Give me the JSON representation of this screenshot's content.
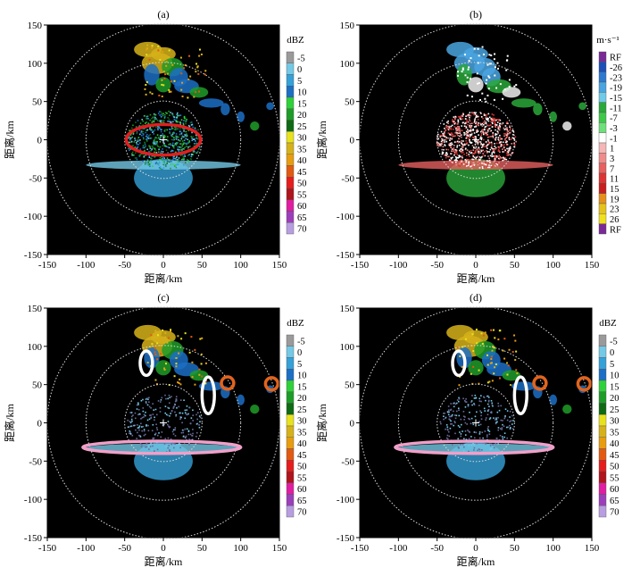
{
  "chart_data": [
    {
      "type": "heatmap",
      "panel_label": "(a)",
      "xlabel": "距离/km",
      "ylabel": "距离/km",
      "xlim": [
        -150,
        150
      ],
      "ylim": [
        -150,
        150
      ],
      "xticks": [
        -150,
        -100,
        -50,
        0,
        50,
        100,
        150
      ],
      "yticks": [
        -150,
        -100,
        -50,
        0,
        50,
        100,
        150
      ],
      "range_rings_km": [
        50,
        100,
        150
      ],
      "legend": {
        "unit": "dBZ",
        "placement": "right",
        "labels": [
          "-5",
          "0",
          "5",
          "10",
          "15",
          "20",
          "25",
          "30",
          "35",
          "40",
          "45",
          "50",
          "55",
          "60",
          "65",
          "70"
        ],
        "colors": [
          "#9a9a9a",
          "#74c9e6",
          "#35a1d8",
          "#1c6fc4",
          "#2fd13a",
          "#1e9c28",
          "#0f6a14",
          "#e8e21e",
          "#d6b21a",
          "#e89d10",
          "#e25a12",
          "#e61d1d",
          "#b0141c",
          "#e01ea2",
          "#9c3eba",
          "#b89ee0"
        ]
      },
      "annotations": [
        {
          "shape": "ellipse",
          "color": "#e02020",
          "center": [
            0,
            0
          ],
          "radii": [
            48,
            20
          ]
        }
      ]
    },
    {
      "type": "heatmap",
      "panel_label": "(b)",
      "xlabel": "距离/km",
      "ylabel": "距离/km",
      "xlim": [
        -150,
        150
      ],
      "ylim": [
        -150,
        150
      ],
      "xticks": [
        -150,
        -100,
        -50,
        0,
        50,
        100,
        150
      ],
      "yticks": [
        -150,
        -100,
        -50,
        0,
        50,
        100,
        150
      ],
      "range_rings_km": [
        50,
        100,
        150
      ],
      "legend": {
        "unit": "m·s⁻¹",
        "placement": "right",
        "labels": [
          "RF",
          "-26",
          "-23",
          "-19",
          "-15",
          "-11",
          "-7",
          "-3",
          "-1",
          "1",
          "3",
          "7",
          "11",
          "15",
          "19",
          "23",
          "26",
          "RF"
        ],
        "colors": [
          "#7a2a96",
          "#1c4fb8",
          "#2c79d0",
          "#4aa4e0",
          "#6fcbe8",
          "#2aa83a",
          "#3ec84a",
          "#6ee07a",
          "#ffffff",
          "#f4b6b6",
          "#ee8c8c",
          "#e66060",
          "#dc3434",
          "#c81e1e",
          "#e4901c",
          "#e6c21c",
          "#f0e020",
          "#7a2a96"
        ]
      },
      "annotations": []
    },
    {
      "type": "heatmap",
      "panel_label": "(c)",
      "xlabel": "距离/km",
      "ylabel": "距离/km",
      "xlim": [
        -150,
        150
      ],
      "ylim": [
        -150,
        150
      ],
      "xticks": [
        -150,
        -100,
        -50,
        0,
        50,
        100,
        150
      ],
      "yticks": [
        -150,
        -100,
        -50,
        0,
        50,
        100,
        150
      ],
      "range_rings_km": [
        50,
        100,
        150
      ],
      "legend": {
        "unit": "dBZ",
        "placement": "right",
        "labels": [
          "-5",
          "0",
          "5",
          "10",
          "15",
          "20",
          "25",
          "30",
          "35",
          "40",
          "45",
          "50",
          "55",
          "60",
          "65",
          "70"
        ],
        "colors": [
          "#9a9a9a",
          "#74c9e6",
          "#35a1d8",
          "#1c6fc4",
          "#2fd13a",
          "#1e9c28",
          "#0f6a14",
          "#e8e21e",
          "#d6b21a",
          "#e89d10",
          "#e25a12",
          "#e61d1d",
          "#b0141c",
          "#e01ea2",
          "#9c3eba",
          "#b89ee0"
        ]
      },
      "annotations": [
        {
          "shape": "ellipse",
          "color": "#f0a0c8",
          "center": [
            -2,
            -32
          ],
          "radii": [
            102,
            8
          ]
        },
        {
          "shape": "ellipse",
          "color": "#ffffff",
          "center": [
            -22,
            78
          ],
          "radii": [
            8,
            16
          ]
        },
        {
          "shape": "ellipse",
          "color": "#ffffff",
          "center": [
            58,
            36
          ],
          "radii": [
            8,
            24
          ]
        },
        {
          "shape": "circle",
          "color": "#e0641e",
          "center": [
            83,
            52
          ],
          "radius": 8
        },
        {
          "shape": "circle",
          "color": "#e0641e",
          "center": [
            140,
            51
          ],
          "radius": 8
        }
      ]
    },
    {
      "type": "heatmap",
      "panel_label": "(d)",
      "xlabel": "距离/km",
      "ylabel": "距离/km",
      "xlim": [
        -150,
        150
      ],
      "ylim": [
        -150,
        150
      ],
      "xticks": [
        -150,
        -100,
        -50,
        0,
        50,
        100,
        150
      ],
      "yticks": [
        -150,
        -100,
        -50,
        0,
        50,
        100,
        150
      ],
      "range_rings_km": [
        50,
        100,
        150
      ],
      "legend": {
        "unit": "dBZ",
        "placement": "right",
        "labels": [
          "-5",
          "0",
          "5",
          "10",
          "15",
          "20",
          "25",
          "30",
          "35",
          "40",
          "45",
          "50",
          "55",
          "60",
          "65",
          "70"
        ],
        "colors": [
          "#9a9a9a",
          "#74c9e6",
          "#35a1d8",
          "#1c6fc4",
          "#2fd13a",
          "#1e9c28",
          "#0f6a14",
          "#e8e21e",
          "#d6b21a",
          "#e89d10",
          "#e25a12",
          "#e61d1d",
          "#b0141c",
          "#e01ea2",
          "#9c3eba",
          "#b89ee0"
        ]
      },
      "annotations": [
        {
          "shape": "ellipse",
          "color": "#f0a0c8",
          "center": [
            -2,
            -32
          ],
          "radii": [
            102,
            8
          ]
        },
        {
          "shape": "ellipse",
          "color": "#ffffff",
          "center": [
            -22,
            78
          ],
          "radii": [
            8,
            16
          ]
        },
        {
          "shape": "ellipse",
          "color": "#ffffff",
          "center": [
            58,
            36
          ],
          "radii": [
            8,
            24
          ]
        },
        {
          "shape": "circle",
          "color": "#e0641e",
          "center": [
            83,
            52
          ],
          "radius": 8
        },
        {
          "shape": "circle",
          "color": "#e0641e",
          "center": [
            140,
            51
          ],
          "radius": 8
        }
      ]
    }
  ]
}
